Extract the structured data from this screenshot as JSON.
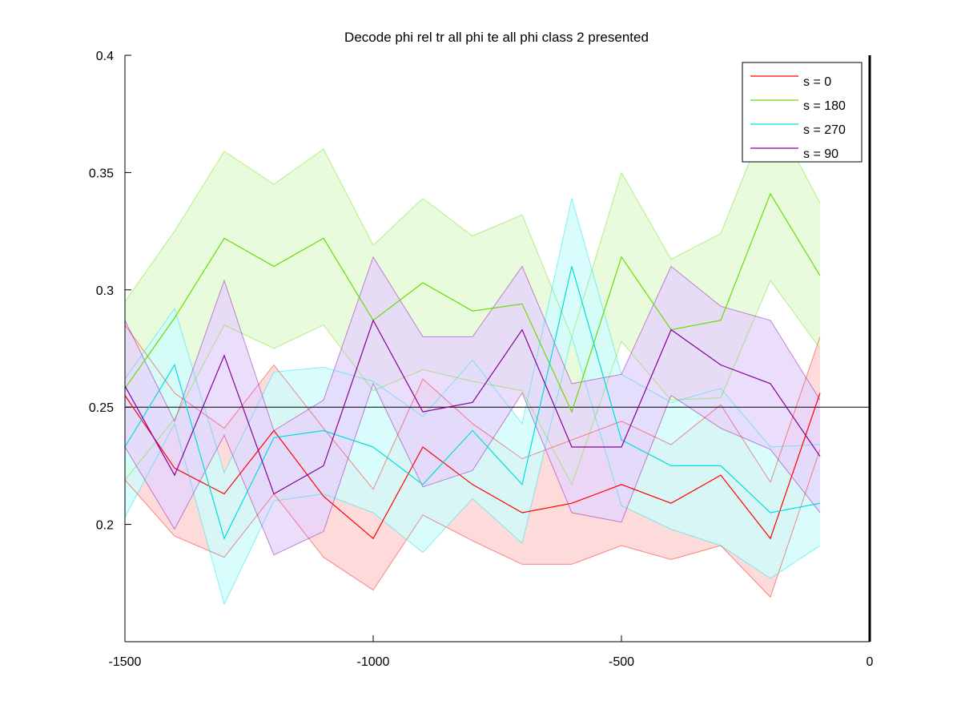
{
  "chart_data": {
    "type": "line",
    "title": "Decode phi rel tr all phi te all phi class 2 presented",
    "xlabel": "",
    "ylabel": "",
    "xlim": [
      -1500,
      0
    ],
    "ylim": [
      0.15,
      0.4
    ],
    "x_ticks": [
      -1500,
      -1000,
      -500,
      0
    ],
    "x_tick_labels": [
      "-1500",
      "-1000",
      "-500",
      "0"
    ],
    "y_ticks": [
      0.2,
      0.25,
      0.3,
      0.35,
      0.4
    ],
    "y_tick_labels": [
      "0.2",
      "0.25",
      "0.3",
      "0.35",
      "0.4"
    ],
    "grid": false,
    "legend_position": "top-right",
    "reference_lines": [
      {
        "axis": "y",
        "value": 0.25,
        "color": "#000000"
      },
      {
        "axis": "x",
        "value": 0,
        "color": "#000000"
      }
    ],
    "x": [
      -1500,
      -1400,
      -1300,
      -1200,
      -1100,
      -1000,
      -900,
      -800,
      -700,
      -600,
      -500,
      -400,
      -300,
      -200,
      -100
    ],
    "series": [
      {
        "name": "s = 0",
        "color": "#ff0000",
        "fill": "#fcd2d2",
        "values": [
          0.255,
          0.224,
          0.213,
          0.24,
          0.212,
          0.194,
          0.233,
          0.217,
          0.205,
          0.209,
          0.217,
          0.209,
          0.221,
          0.194,
          0.256
        ],
        "upper": [
          0.285,
          0.256,
          0.241,
          0.268,
          0.241,
          0.215,
          0.262,
          0.243,
          0.228,
          0.236,
          0.244,
          0.234,
          0.251,
          0.218,
          0.28
        ],
        "lower": [
          0.219,
          0.195,
          0.186,
          0.213,
          0.186,
          0.172,
          0.204,
          0.193,
          0.183,
          0.183,
          0.191,
          0.185,
          0.191,
          0.169,
          0.232
        ]
      },
      {
        "name": "s = 180",
        "color": "#66dd00",
        "fill": "#e4fad4",
        "values": [
          0.258,
          0.288,
          0.322,
          0.31,
          0.322,
          0.287,
          0.303,
          0.291,
          0.294,
          0.248,
          0.314,
          0.283,
          0.287,
          0.341,
          0.306
        ],
        "upper": [
          0.295,
          0.325,
          0.359,
          0.345,
          0.36,
          0.319,
          0.339,
          0.323,
          0.332,
          0.28,
          0.35,
          0.313,
          0.324,
          0.377,
          0.337
        ],
        "lower": [
          0.219,
          0.245,
          0.285,
          0.275,
          0.285,
          0.257,
          0.266,
          0.261,
          0.257,
          0.217,
          0.278,
          0.253,
          0.254,
          0.304,
          0.275
        ]
      },
      {
        "name": "s = 270",
        "color": "#00dddd",
        "fill": "#cffdfd",
        "values": [
          0.233,
          0.268,
          0.194,
          0.237,
          0.24,
          0.233,
          0.217,
          0.24,
          0.217,
          0.31,
          0.236,
          0.225,
          0.225,
          0.205,
          0.209
        ],
        "upper": [
          0.262,
          0.292,
          0.222,
          0.265,
          0.267,
          0.261,
          0.246,
          0.27,
          0.243,
          0.339,
          0.264,
          0.252,
          0.258,
          0.233,
          0.234
        ],
        "lower": [
          0.203,
          0.243,
          0.166,
          0.21,
          0.213,
          0.205,
          0.188,
          0.211,
          0.192,
          0.28,
          0.208,
          0.198,
          0.191,
          0.177,
          0.191
        ]
      },
      {
        "name": "s = 90",
        "color": "#880099",
        "fill": "#e6d4fb",
        "values": [
          0.259,
          0.221,
          0.272,
          0.213,
          0.225,
          0.287,
          0.248,
          0.252,
          0.283,
          0.233,
          0.233,
          0.283,
          0.268,
          0.26,
          0.229
        ],
        "upper": [
          0.287,
          0.244,
          0.304,
          0.24,
          0.253,
          0.314,
          0.28,
          0.28,
          0.31,
          0.26,
          0.264,
          0.31,
          0.293,
          0.287,
          0.253
        ],
        "lower": [
          0.233,
          0.198,
          0.238,
          0.187,
          0.197,
          0.26,
          0.216,
          0.223,
          0.256,
          0.205,
          0.201,
          0.255,
          0.241,
          0.232,
          0.205
        ]
      }
    ]
  }
}
